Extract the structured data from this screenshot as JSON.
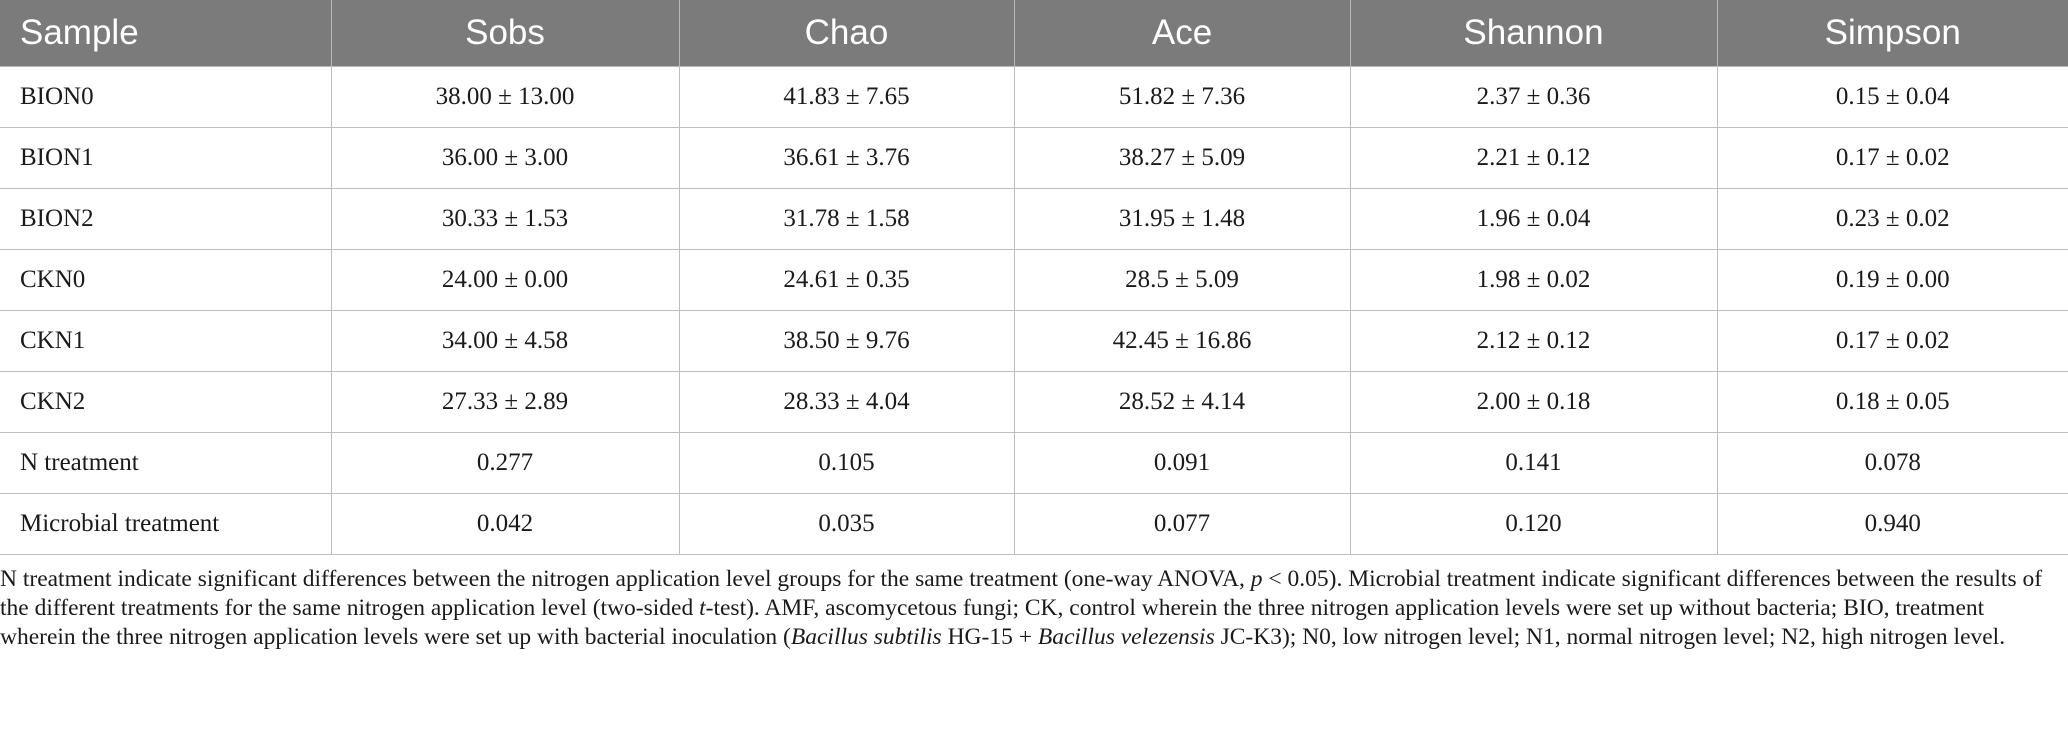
{
  "table": {
    "headers": [
      "Sample",
      "Sobs",
      "Chao",
      "Ace",
      "Shannon",
      "Simpson"
    ],
    "rows": [
      [
        "BION0",
        "38.00 ± 13.00",
        "41.83 ± 7.65",
        "51.82 ± 7.36",
        "2.37 ± 0.36",
        "0.15 ± 0.04"
      ],
      [
        "BION1",
        "36.00 ± 3.00",
        "36.61 ± 3.76",
        "38.27 ± 5.09",
        "2.21 ± 0.12",
        "0.17 ± 0.02"
      ],
      [
        "BION2",
        "30.33 ± 1.53",
        "31.78 ± 1.58",
        "31.95 ± 1.48",
        "1.96 ± 0.04",
        "0.23 ± 0.02"
      ],
      [
        "CKN0",
        "24.00 ± 0.00",
        "24.61 ± 0.35",
        "28.5 ± 5.09",
        "1.98 ± 0.02",
        "0.19 ± 0.00"
      ],
      [
        "CKN1",
        "34.00 ± 4.58",
        "38.50 ± 9.76",
        "42.45 ± 16.86",
        "2.12 ± 0.12",
        "0.17 ± 0.02"
      ],
      [
        "CKN2",
        "27.33 ± 2.89",
        "28.33 ± 4.04",
        "28.52 ± 4.14",
        "2.00 ± 0.18",
        "0.18 ± 0.05"
      ],
      [
        "N treatment",
        "0.277",
        "0.105",
        "0.091",
        "0.141",
        "0.078"
      ],
      [
        "Microbial treatment",
        "0.042",
        "0.035",
        "0.077",
        "0.120",
        "0.940"
      ]
    ]
  },
  "footnote": {
    "part1": "N treatment indicate significant differences between the nitrogen application level groups for the same treatment (one-way ANOVA, ",
    "p_symbol": "p",
    "part2": " < 0.05). Microbial treatment indicate significant differences between the results of the different treatments for the same nitrogen application level (two-sided ",
    "t_symbol": "t",
    "part3": "-test). AMF, ascomycetous fungi; CK, control wherein the three nitrogen application levels were set up without bacteria; BIO, treatment wherein the three nitrogen application levels were set up with bacterial inoculation (",
    "species1": "Bacillus subtilis",
    "strain1": " HG-15 + ",
    "species2": "Bacillus velezensis",
    "part4": " JC-K3); N0, low nitrogen level; N1, normal nitrogen level; N2, high nitrogen level."
  }
}
